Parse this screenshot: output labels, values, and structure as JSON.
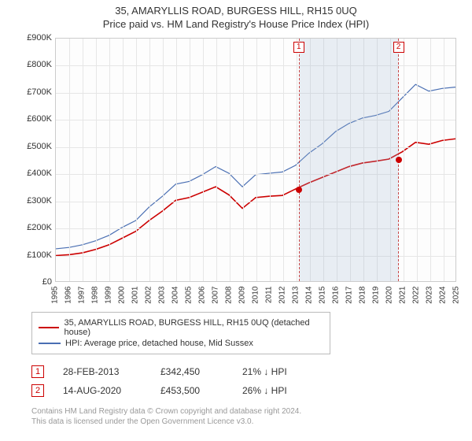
{
  "title": {
    "line1": "35, AMARYLLIS ROAD, BURGESS HILL, RH15 0UQ",
    "line2": "Price paid vs. HM Land Registry's House Price Index (HPI)"
  },
  "chart": {
    "type": "line",
    "background_color": "#fdfdfd",
    "grid_color": "#e6e6e6",
    "border_color": "#cccccc",
    "x": {
      "min": 1995,
      "max": 2025,
      "ticks": [
        1995,
        1996,
        1997,
        1998,
        1999,
        2000,
        2001,
        2002,
        2003,
        2004,
        2005,
        2006,
        2007,
        2008,
        2009,
        2010,
        2011,
        2012,
        2013,
        2014,
        2015,
        2016,
        2017,
        2018,
        2019,
        2020,
        2021,
        2022,
        2023,
        2024,
        2025
      ],
      "label_fontsize": 10
    },
    "y": {
      "min": 0,
      "max": 900000,
      "ticks": [
        0,
        100000,
        200000,
        300000,
        400000,
        500000,
        600000,
        700000,
        800000,
        900000
      ],
      "tick_labels": [
        "£0",
        "£100K",
        "£200K",
        "£300K",
        "£400K",
        "£500K",
        "£600K",
        "£700K",
        "£800K",
        "£900K"
      ],
      "label_fontsize": 11
    },
    "shaded_region": {
      "x_start": 2013.16,
      "x_end": 2020.62
    },
    "series": [
      {
        "key": "property",
        "color": "#cc0000",
        "width": 1.6,
        "legend": "35, AMARYLLIS ROAD, BURGESS HILL, RH15 0UQ (detached house)",
        "points": [
          [
            1995,
            95000
          ],
          [
            1996,
            98000
          ],
          [
            1997,
            105000
          ],
          [
            1998,
            118000
          ],
          [
            1999,
            135000
          ],
          [
            2000,
            160000
          ],
          [
            2001,
            185000
          ],
          [
            2002,
            225000
          ],
          [
            2003,
            260000
          ],
          [
            2004,
            300000
          ],
          [
            2005,
            310000
          ],
          [
            2006,
            330000
          ],
          [
            2007,
            350000
          ],
          [
            2008,
            320000
          ],
          [
            2009,
            270000
          ],
          [
            2010,
            310000
          ],
          [
            2011,
            315000
          ],
          [
            2012,
            318000
          ],
          [
            2013,
            342000
          ],
          [
            2014,
            365000
          ],
          [
            2015,
            385000
          ],
          [
            2016,
            405000
          ],
          [
            2017,
            425000
          ],
          [
            2018,
            438000
          ],
          [
            2019,
            445000
          ],
          [
            2020,
            453000
          ],
          [
            2021,
            480000
          ],
          [
            2022,
            515000
          ],
          [
            2023,
            508000
          ],
          [
            2024,
            522000
          ],
          [
            2025,
            528000
          ]
        ]
      },
      {
        "key": "hpi",
        "color": "#4a6fb3",
        "width": 1.2,
        "legend": "HPI: Average price, detached house, Mid Sussex",
        "points": [
          [
            1995,
            120000
          ],
          [
            1996,
            125000
          ],
          [
            1997,
            135000
          ],
          [
            1998,
            150000
          ],
          [
            1999,
            170000
          ],
          [
            2000,
            200000
          ],
          [
            2001,
            225000
          ],
          [
            2002,
            275000
          ],
          [
            2003,
            315000
          ],
          [
            2004,
            360000
          ],
          [
            2005,
            370000
          ],
          [
            2006,
            395000
          ],
          [
            2007,
            425000
          ],
          [
            2008,
            400000
          ],
          [
            2009,
            350000
          ],
          [
            2010,
            395000
          ],
          [
            2011,
            400000
          ],
          [
            2012,
            405000
          ],
          [
            2013,
            430000
          ],
          [
            2014,
            475000
          ],
          [
            2015,
            510000
          ],
          [
            2016,
            555000
          ],
          [
            2017,
            585000
          ],
          [
            2018,
            605000
          ],
          [
            2019,
            615000
          ],
          [
            2020,
            630000
          ],
          [
            2021,
            680000
          ],
          [
            2022,
            730000
          ],
          [
            2023,
            705000
          ],
          [
            2024,
            715000
          ],
          [
            2025,
            720000
          ]
        ]
      }
    ],
    "markers": [
      {
        "n": "1",
        "x": 2013.16,
        "y": 342450,
        "color": "#cc0000"
      },
      {
        "n": "2",
        "x": 2020.62,
        "y": 453500,
        "color": "#cc0000"
      }
    ]
  },
  "annotations": [
    {
      "n": "1",
      "date": "28-FEB-2013",
      "price": "£342,450",
      "pct": "21% ↓ HPI"
    },
    {
      "n": "2",
      "date": "14-AUG-2020",
      "price": "£453,500",
      "pct": "26% ↓ HPI"
    }
  ],
  "footer": {
    "line1": "Contains HM Land Registry data © Crown copyright and database right 2024.",
    "line2": "This data is licensed under the Open Government Licence v3.0."
  }
}
